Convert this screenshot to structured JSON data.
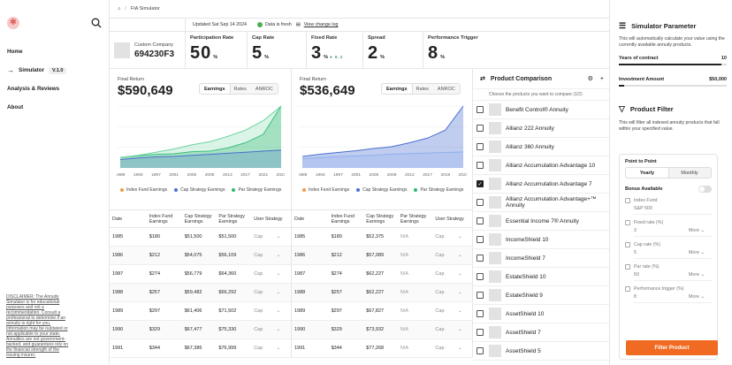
{
  "nav": {
    "items": [
      {
        "label": "Home"
      },
      {
        "label": "Simulator",
        "badge": "V.1.0"
      },
      {
        "label": "Analysis & Reviews"
      },
      {
        "label": "About"
      }
    ],
    "disclaimer": "DISCLAIMER: The Annuity Simulator is for educational purposes and not a recommendation. Consult a professional to determine if an annuity is right for you. Information may be outdated or not applicable to your state. Annuities are not government-backed, and guarantees rely on the financial strength of the issuing insurer."
  },
  "breadcrumb": {
    "current": "FIA Simulator"
  },
  "info": {
    "updated": "Updated Sat Sep 14 2024",
    "status": "Data is fresh",
    "log_link": "View change log"
  },
  "company": {
    "label": "Custom Company",
    "id": "694230F3"
  },
  "metrics": [
    {
      "label": "Participation Rate",
      "value": "50",
      "unit": "%"
    },
    {
      "label": "Cap Rate",
      "value": "5",
      "unit": "%"
    },
    {
      "label": "Fixed Rate",
      "value": "3",
      "unit": "%",
      "tag": "0.1"
    },
    {
      "label": "Spread",
      "value": "2",
      "unit": "%"
    },
    {
      "label": "Performance Trigger",
      "value": "8",
      "unit": "%"
    }
  ],
  "charts": [
    {
      "label": "Final Return",
      "value": "$590,649",
      "tabs": [
        "Earnings",
        "Rates",
        "ANROC"
      ],
      "active_tab": "Earnings",
      "legend": [
        "Index Fund Earnings",
        "Cap Strategy Earnings",
        "Par Strategy Earnings"
      ]
    },
    {
      "label": "Final Return",
      "value": "$536,649",
      "tabs": [
        "Earnings",
        "Rates",
        "ANROC"
      ],
      "active_tab": "Earnings",
      "legend": [
        "Index Fund Earnings",
        "Cap Strategy Earnings",
        "Par Strategy Earnings"
      ]
    }
  ],
  "chart_data": [
    {
      "type": "area",
      "x": [
        "1989",
        "1993",
        "1997",
        "2001",
        "2005",
        "2009",
        "2013",
        "2017",
        "2021",
        "2023"
      ],
      "series": [
        {
          "name": "Index Fund Earnings",
          "values": [
            1.0,
            1.15,
            1.3,
            1.35,
            1.55,
            1.6,
            1.9,
            2.4,
            3.2,
            5.9
          ]
        },
        {
          "name": "Par Strategy Earnings",
          "values": [
            1.0,
            1.2,
            1.5,
            1.8,
            2.2,
            2.5,
            3.0,
            3.6,
            4.5,
            5.9
          ]
        },
        {
          "name": "Cap Strategy Earnings",
          "values": [
            0.8,
            0.95,
            1.05,
            1.1,
            1.2,
            1.3,
            1.4,
            1.5,
            1.6,
            1.7
          ]
        }
      ],
      "colors": [
        "#2eb872",
        "#6dd3a0",
        "#4a6fd1"
      ]
    },
    {
      "type": "area",
      "x": [
        "1989",
        "1993",
        "1997",
        "2001",
        "2005",
        "2009",
        "2013",
        "2017",
        "2019",
        "2023"
      ],
      "series": [
        {
          "name": "Index Fund Earnings",
          "values": [
            1.0,
            1.2,
            1.35,
            1.5,
            1.7,
            1.85,
            2.2,
            2.6,
            3.3,
            5.4
          ]
        },
        {
          "name": "Cap Strategy Earnings",
          "values": [
            0.8,
            0.9,
            1.0,
            1.05,
            1.1,
            1.2,
            1.25,
            1.3,
            1.35,
            1.4
          ]
        }
      ],
      "colors": [
        "#4a6fd1",
        "#8fb0ee",
        "#4a6fd1"
      ]
    }
  ],
  "table_headers": [
    "Date",
    "Index Fund Earnings",
    "Cap Strategy Earnings",
    "Par Strategy Earnings",
    "User Strategy"
  ],
  "table1": [
    [
      "1985",
      "$180",
      "$51,500",
      "$51,500",
      "Cap"
    ],
    [
      "1986",
      "$212",
      "$54,075",
      "$56,109",
      "Cap"
    ],
    [
      "1987",
      "$274",
      "$56,779",
      "$64,360",
      "Cap"
    ],
    [
      "1988",
      "$257",
      "$59,482",
      "$66,292",
      "Cap"
    ],
    [
      "1989",
      "$297",
      "$61,406",
      "$71,502",
      "Cap"
    ],
    [
      "1990",
      "$329",
      "$67,477",
      "$75,330",
      "Cap"
    ],
    [
      "1991",
      "$344",
      "$67,386",
      "$76,999",
      "Cap"
    ]
  ],
  "table2": [
    [
      "1985",
      "$180",
      "$52,375",
      "N/A",
      "Cap"
    ],
    [
      "1986",
      "$212",
      "$57,089",
      "N/A",
      "Cap"
    ],
    [
      "1987",
      "$274",
      "$62,227",
      "N/A",
      "Cap"
    ],
    [
      "1988",
      "$257",
      "$62,227",
      "N/A",
      "Cap"
    ],
    [
      "1989",
      "$297",
      "$67,827",
      "N/A",
      "Cap"
    ],
    [
      "1990",
      "$329",
      "$73,932",
      "N/A",
      "Cap"
    ],
    [
      "1991",
      "$344",
      "$77,268",
      "N/A",
      "Cap"
    ]
  ],
  "comparison": {
    "title": "Product Comparison",
    "subtitle": "Choose the products you want to compare (1/2)",
    "products": [
      {
        "name": "Benefit Control® Annuity",
        "checked": false
      },
      {
        "name": "Allianz 222 Annuity",
        "checked": false
      },
      {
        "name": "Allianz 360 Annuity",
        "checked": false
      },
      {
        "name": "Allianz Accumulation Advantage 10",
        "checked": false
      },
      {
        "name": "Allianz Accumulation Advantage 7",
        "checked": true
      },
      {
        "name": "Allianz Accumulation Advantage+™ Annuity",
        "checked": false
      },
      {
        "name": "Essential Income 7® Annuity",
        "checked": false
      },
      {
        "name": "IncomeShield 10",
        "checked": false
      },
      {
        "name": "IncomeShield 7",
        "checked": false
      },
      {
        "name": "EstateShield 10",
        "checked": false
      },
      {
        "name": "EstateShield 9",
        "checked": false
      },
      {
        "name": "AssetShield 10",
        "checked": false
      },
      {
        "name": "AssetShield 7",
        "checked": false
      },
      {
        "name": "AssetShield 5",
        "checked": false
      }
    ]
  },
  "sim_params": {
    "title": "Simulator Parameter",
    "desc": "This will automatically calculate your value using the currently available annuity products.",
    "years_label": "Years of contract",
    "years_value": "10",
    "years_fill": 0.95,
    "investment_label": "Investment Amount",
    "investment_value": "$50,000",
    "investment_fill": 0.05
  },
  "product_filter": {
    "title": "Product Filter",
    "desc": "This will filter all indexed annuity products that fall within your specified value.",
    "ptp_label": "Point to Point",
    "ptp_options": [
      "Yearly",
      "Monthly"
    ],
    "ptp_active": "Yearly",
    "bonus_label": "Bonus Available",
    "fields": [
      {
        "label": "Index Fund",
        "value": "S&P 500",
        "more": ""
      },
      {
        "label": "Fixed rate (%)",
        "value": "3",
        "more": "More"
      },
      {
        "label": "Cap rate (%)",
        "value": "5",
        "more": "More"
      },
      {
        "label": "Par rate (%)",
        "value": "50",
        "more": "More"
      },
      {
        "label": "Performance trigger (%)",
        "value": "8",
        "more": "More"
      }
    ],
    "button": "Filter Product"
  }
}
